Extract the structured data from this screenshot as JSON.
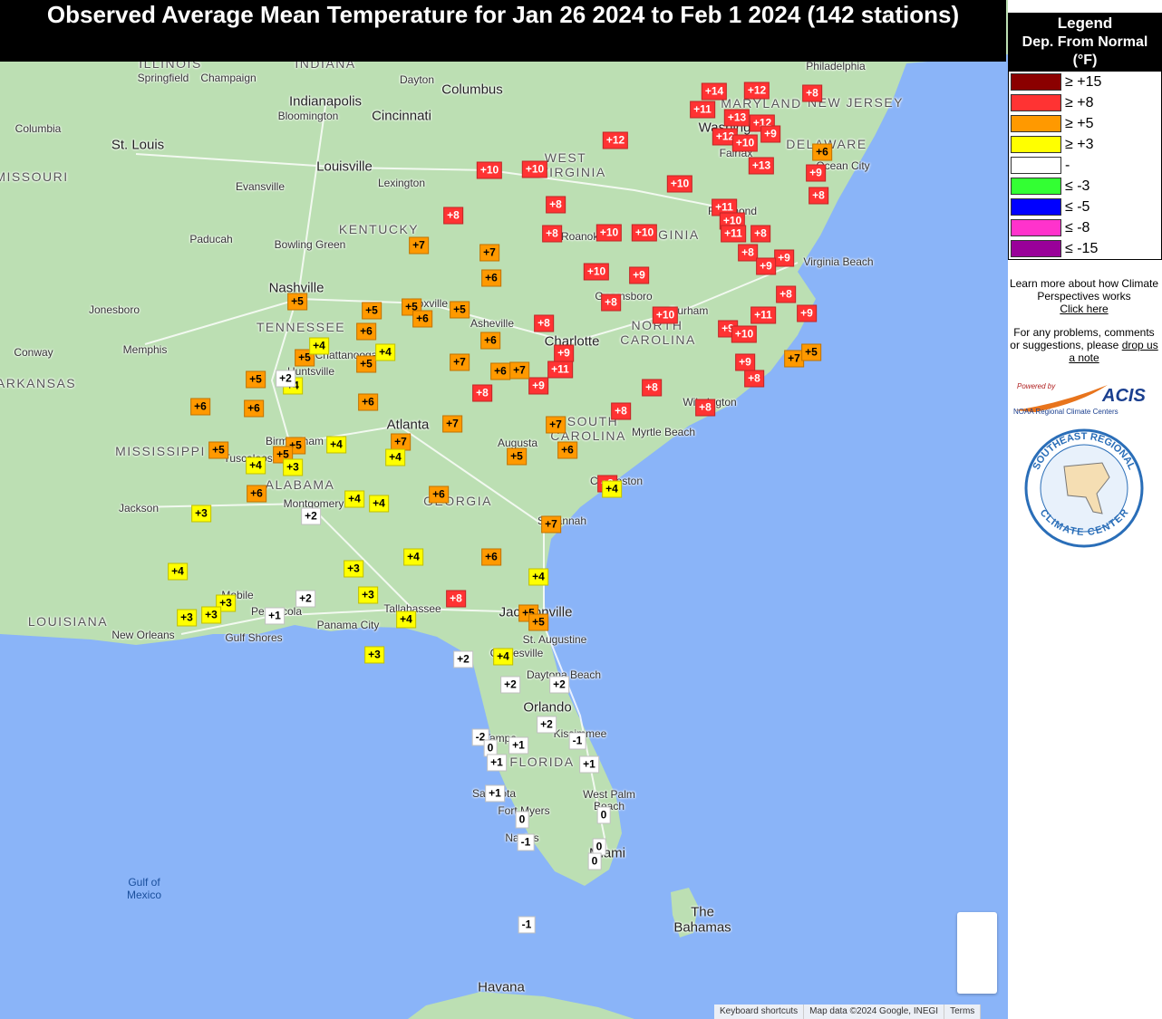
{
  "title": "Observed Average Mean Temperature for Jan 26 2024 to Feb 1 2024 (142 stations)",
  "legend": {
    "title": "Legend",
    "subtitle": "Dep. From Normal (°F)",
    "items": [
      {
        "label": "≥ +15",
        "color": "#8b0000"
      },
      {
        "label": "≥ +8",
        "color": "#ff3333"
      },
      {
        "label": "≥ +5",
        "color": "#ff9900"
      },
      {
        "label": "≥ +3",
        "color": "#ffff00"
      },
      {
        "label": "-",
        "color": "#ffffff"
      },
      {
        "label": "≤ -3",
        "color": "#33ff33"
      },
      {
        "label": "≤ -5",
        "color": "#0000ff"
      },
      {
        "label": "≤ -8",
        "color": "#ff33cc"
      },
      {
        "label": "≤ -15",
        "color": "#990099"
      }
    ]
  },
  "sidebar": {
    "learn": "Learn more about how Climate Perspectives works",
    "learn_link": "Click here",
    "problems": "For any problems, comments or suggestions, please",
    "problems_link": "drop us a note",
    "powered_by": "Powered by",
    "acis": "ACIS",
    "noaa": "NOAA Regional Climate Centers",
    "sercc_top": "SOUTHEAST REGIONAL",
    "sercc_bottom": "CLIMATE CENTER"
  },
  "map": {
    "labels": [
      "ILLINOIS",
      "INDIANA",
      "Springfield",
      "Champaign",
      "Indianapolis",
      "Bloomington",
      "Dayton",
      "Columbus",
      "Cincinnati",
      "Philadelphia",
      "Columbia",
      "St. Louis",
      "Louisville",
      "Evansville",
      "Lexington",
      "MISSOURI",
      "WEST",
      "VIRGINIA",
      "KENTUCKY",
      "Paducah",
      "Bowling Green",
      "VIRGINIA",
      "MARYLAND",
      "NEW JERSEY",
      "Washington",
      "DELAWARE",
      "Fairfax",
      "Ocean City",
      "Richmond",
      "Roanoke",
      "Virginia Beach",
      "Nashville",
      "Jonesboro",
      "TENNESSEE",
      "Knoxville",
      "Asheville",
      "Greensboro",
      "Durham",
      "NORTH",
      "CAROLINA",
      "Memphis",
      "Conway",
      "Chattanooga",
      "Huntsville",
      "Charlotte",
      "ARKANSAS",
      "Wilmington",
      "Atlanta",
      "SOUTH",
      "CAROLINA",
      "Myrtle Beach",
      "MISSISSIPPI",
      "Birmingham",
      "Tuscaloosa",
      "Augusta",
      "ALABAMA",
      "Charleston",
      "GEORGIA",
      "Montgomery",
      "Jackson",
      "Savannah",
      "Mobile",
      "Pensacola",
      "Tallahassee",
      "Jacksonville",
      "LOUISIANA",
      "Panama City",
      "New Orleans",
      "Gulf Shores",
      "St. Augustine",
      "Gainesville",
      "Daytona Beach",
      "Orlando",
      "Kissimmee",
      "Tampa",
      "FLORIDA",
      "Sarasota",
      "West Palm",
      "Beach",
      "Fort Myers",
      "Naples",
      "Miami",
      "Gulf of",
      "Mexico",
      "The",
      "Bahamas",
      "Havana"
    ],
    "footer": [
      "Keyboard shortcuts",
      "Map data ©2024 Google, INEGI",
      "Terms"
    ]
  },
  "stations": [
    {
      "label": "+14",
      "level": 1
    },
    {
      "label": "+12",
      "level": 1
    },
    {
      "label": "+8",
      "level": 1
    },
    {
      "label": "+11",
      "level": 1
    },
    {
      "label": "+13",
      "level": 1
    },
    {
      "label": "+12",
      "level": 1
    },
    {
      "label": "+12",
      "level": 1
    },
    {
      "label": "+10",
      "level": 1
    },
    {
      "label": "+9",
      "level": 1
    },
    {
      "label": "+12",
      "level": 1
    },
    {
      "label": "+13",
      "level": 1
    },
    {
      "label": "+9",
      "level": 1
    },
    {
      "label": "+10",
      "level": 1
    },
    {
      "label": "+10",
      "level": 1
    },
    {
      "label": "+10",
      "level": 1
    },
    {
      "label": "+8",
      "level": 1
    },
    {
      "label": "+8",
      "level": 1
    },
    {
      "label": "+8",
      "level": 1
    },
    {
      "label": "+11",
      "level": 1
    },
    {
      "label": "+10",
      "level": 1
    },
    {
      "label": "+11",
      "level": 1
    },
    {
      "label": "+8",
      "level": 1
    },
    {
      "label": "+8",
      "level": 1
    },
    {
      "label": "+10",
      "level": 1
    },
    {
      "label": "+10",
      "level": 1
    },
    {
      "label": "+8",
      "level": 1
    },
    {
      "label": "+9",
      "level": 1
    },
    {
      "label": "+9",
      "level": 1
    },
    {
      "label": "+10",
      "level": 1
    },
    {
      "label": "+9",
      "level": 1
    },
    {
      "label": "+8",
      "level": 1
    },
    {
      "label": "+8",
      "level": 1
    },
    {
      "label": "+11",
      "level": 1
    },
    {
      "label": "+9",
      "level": 1
    },
    {
      "label": "+10",
      "level": 1
    },
    {
      "label": "+8",
      "level": 1
    },
    {
      "label": "+9",
      "level": 1
    },
    {
      "label": "+10",
      "level": 1
    },
    {
      "label": "+9",
      "level": 1
    },
    {
      "label": "+11",
      "level": 1
    },
    {
      "label": "+9",
      "level": 1
    },
    {
      "label": "+8",
      "level": 1
    },
    {
      "label": "+9",
      "level": 1
    },
    {
      "label": "+8",
      "level": 1
    },
    {
      "label": "+8",
      "level": 1
    },
    {
      "label": "+8",
      "level": 1
    },
    {
      "label": "+8",
      "level": 1
    },
    {
      "label": "+8",
      "level": 1
    },
    {
      "label": "+8",
      "level": 1
    },
    {
      "label": "+6",
      "level": 2
    },
    {
      "label": "+7",
      "level": 2
    },
    {
      "label": "+7",
      "level": 2
    },
    {
      "label": "+6",
      "level": 2
    },
    {
      "label": "+5",
      "level": 2
    },
    {
      "label": "+5",
      "level": 2
    },
    {
      "label": "+5",
      "level": 2
    },
    {
      "label": "+6",
      "level": 2
    },
    {
      "label": "+5",
      "level": 2
    },
    {
      "label": "+6",
      "level": 2
    },
    {
      "label": "+5",
      "level": 2
    },
    {
      "label": "+5",
      "level": 2
    },
    {
      "label": "+6",
      "level": 2
    },
    {
      "label": "+7",
      "level": 2
    },
    {
      "label": "+7",
      "level": 2
    },
    {
      "label": "+6",
      "level": 2
    },
    {
      "label": "+5",
      "level": 2
    },
    {
      "label": "+7",
      "level": 2
    },
    {
      "label": "+5",
      "level": 2
    },
    {
      "label": "+6",
      "level": 2
    },
    {
      "label": "+6",
      "level": 2
    },
    {
      "label": "+6",
      "level": 2
    },
    {
      "label": "+7",
      "level": 2
    },
    {
      "label": "+7",
      "level": 2
    },
    {
      "label": "+7",
      "level": 2
    },
    {
      "label": "+6",
      "level": 2
    },
    {
      "label": "+5",
      "level": 2
    },
    {
      "label": "+5",
      "level": 2
    },
    {
      "label": "+5",
      "level": 2
    },
    {
      "label": "+5",
      "level": 2
    },
    {
      "label": "+6",
      "level": 2
    },
    {
      "label": "+6",
      "level": 2
    },
    {
      "label": "+7",
      "level": 2
    },
    {
      "label": "+6",
      "level": 2
    },
    {
      "label": "+5",
      "level": 2
    },
    {
      "label": "+5",
      "level": 2
    },
    {
      "label": "+4",
      "level": 3
    },
    {
      "label": "+4",
      "level": 3
    },
    {
      "label": "+4",
      "level": 3
    },
    {
      "label": "+4",
      "level": 3
    },
    {
      "label": "+4",
      "level": 3
    },
    {
      "label": "+4",
      "level": 3
    },
    {
      "label": "+3",
      "level": 3
    },
    {
      "label": "+4",
      "level": 3
    },
    {
      "label": "+4",
      "level": 3
    },
    {
      "label": "+4",
      "level": 3
    },
    {
      "label": "+3",
      "level": 3
    },
    {
      "label": "+4",
      "level": 3
    },
    {
      "label": "+4",
      "level": 3
    },
    {
      "label": "+3",
      "level": 3
    },
    {
      "label": "+4",
      "level": 3
    },
    {
      "label": "+3",
      "level": 3
    },
    {
      "label": "+3",
      "level": 3
    },
    {
      "label": "+3",
      "level": 3
    },
    {
      "label": "+3",
      "level": 3
    },
    {
      "label": "+4",
      "level": 3
    },
    {
      "label": "+3",
      "level": 3
    },
    {
      "label": "+4",
      "level": 3
    },
    {
      "label": "+2",
      "level": 4
    },
    {
      "label": "+2",
      "level": 4
    },
    {
      "label": "+2",
      "level": 4
    },
    {
      "label": "+1",
      "level": 4
    },
    {
      "label": "+2",
      "level": 4
    },
    {
      "label": "+2",
      "level": 4
    },
    {
      "label": "+2",
      "level": 4
    },
    {
      "label": "+2",
      "level": 4
    },
    {
      "label": "-2",
      "level": 4
    },
    {
      "label": "+1",
      "level": 4
    },
    {
      "label": "0",
      "level": 4
    },
    {
      "label": "-1",
      "level": 4
    },
    {
      "label": "+1",
      "level": 4
    },
    {
      "label": "+1",
      "level": 4
    },
    {
      "label": "+1",
      "level": 4
    },
    {
      "label": "0",
      "level": 4
    },
    {
      "label": "-1",
      "level": 4
    },
    {
      "label": "0",
      "level": 4
    },
    {
      "label": "0",
      "level": 4
    },
    {
      "label": "0",
      "level": 4
    },
    {
      "label": "-1",
      "level": 4
    }
  ]
}
